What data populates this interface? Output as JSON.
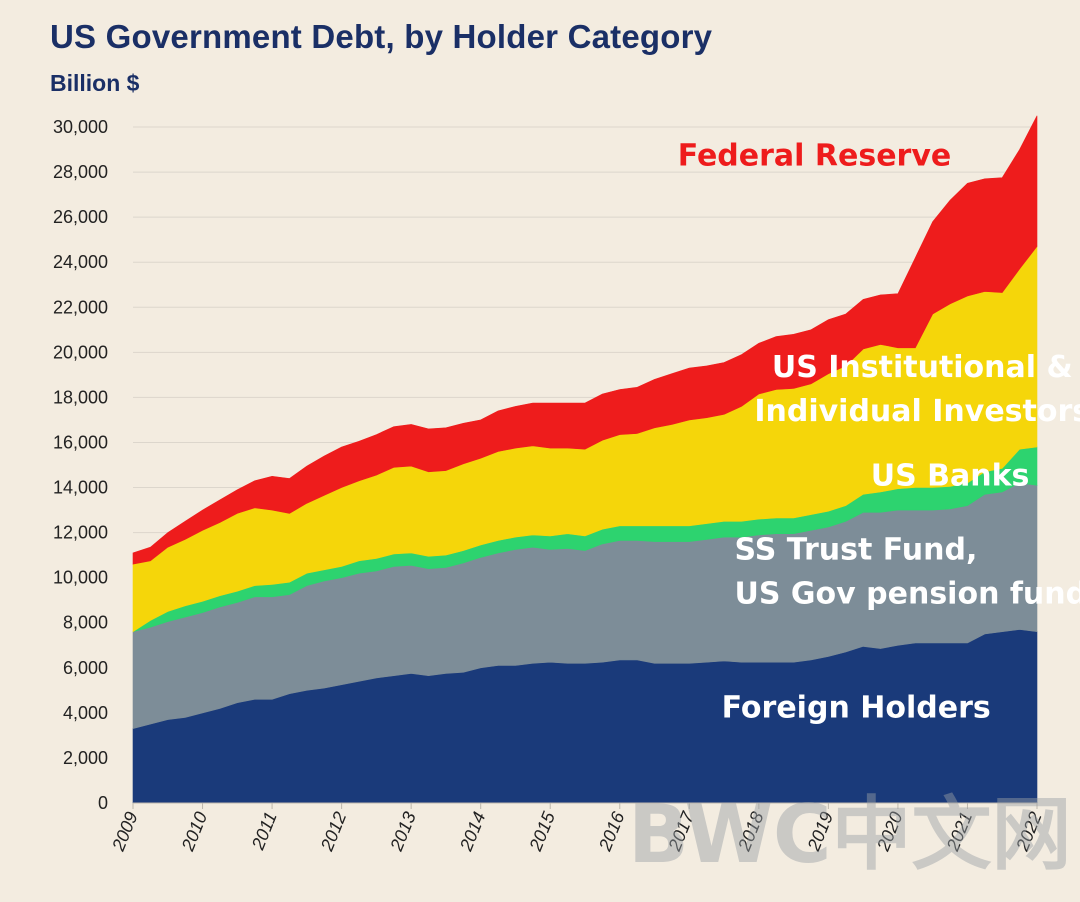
{
  "watermark": "BWC中文网",
  "chart_data": {
    "type": "area",
    "stacked": true,
    "title": "US Government Debt, by Holder Category",
    "ylabel": "Billion $",
    "xlabel": "",
    "ylim": [
      0,
      30000
    ],
    "yticks": [
      0,
      2000,
      4000,
      6000,
      8000,
      10000,
      12000,
      14000,
      16000,
      18000,
      20000,
      22000,
      24000,
      26000,
      28000,
      30000
    ],
    "ytick_labels": [
      "0",
      "2,000",
      "4,000",
      "6,000",
      "8,000",
      "10,000",
      "12,000",
      "14,000",
      "16,000",
      "18,000",
      "20,000",
      "22,000",
      "24,000",
      "26,000",
      "28,000",
      "30,000"
    ],
    "xticks": [
      "2009",
      "2010",
      "2011",
      "2012",
      "2013",
      "2014",
      "2015",
      "2016",
      "2017",
      "2018",
      "2019",
      "2020",
      "2021",
      "2022"
    ],
    "grid": true,
    "legend": "none (direct labels on areas)",
    "x": [
      2009.0,
      2009.25,
      2009.5,
      2009.75,
      2010.0,
      2010.25,
      2010.5,
      2010.75,
      2011.0,
      2011.25,
      2011.5,
      2011.75,
      2012.0,
      2012.25,
      2012.5,
      2012.75,
      2013.0,
      2013.25,
      2013.5,
      2013.75,
      2014.0,
      2014.25,
      2014.5,
      2014.75,
      2015.0,
      2015.25,
      2015.5,
      2015.75,
      2016.0,
      2016.25,
      2016.5,
      2016.75,
      2017.0,
      2017.25,
      2017.5,
      2017.75,
      2018.0,
      2018.25,
      2018.5,
      2018.75,
      2019.0,
      2019.25,
      2019.5,
      2019.75,
      2020.0,
      2020.25,
      2020.5,
      2020.75,
      2021.0,
      2021.25,
      2021.5,
      2021.75,
      2022.0
    ],
    "series": [
      {
        "name": "Foreign Holders",
        "color": "#1a3a7a",
        "label_color": "#ffffff",
        "values": [
          3300,
          3500,
          3700,
          3800,
          4000,
          4200,
          4450,
          4600,
          4600,
          4850,
          5000,
          5100,
          5250,
          5400,
          5550,
          5650,
          5750,
          5650,
          5750,
          5800,
          6000,
          6100,
          6100,
          6200,
          6250,
          6200,
          6200,
          6250,
          6350,
          6350,
          6200,
          6200,
          6200,
          6250,
          6300,
          6250,
          6250,
          6250,
          6250,
          6350,
          6500,
          6700,
          6950,
          6850,
          7000,
          7100,
          7100,
          7100,
          7100,
          7500,
          7600,
          7700,
          7600
        ]
      },
      {
        "name": "SS Trust Fund, US Gov pension funds",
        "color": "#7d8d98",
        "label_color": "#ffffff",
        "values": [
          4300,
          4300,
          4350,
          4450,
          4450,
          4500,
          4450,
          4550,
          4550,
          4400,
          4650,
          4750,
          4750,
          4800,
          4750,
          4850,
          4800,
          4750,
          4700,
          4850,
          4900,
          5000,
          5150,
          5150,
          5000,
          5100,
          5000,
          5250,
          5300,
          5300,
          5400,
          5400,
          5400,
          5450,
          5500,
          5550,
          5650,
          5700,
          5700,
          5750,
          5750,
          5800,
          5950,
          6050,
          6000,
          5900,
          5900,
          5950,
          6100,
          6200,
          6200,
          6500,
          6500
        ]
      },
      {
        "name": "US Banks",
        "color": "#2dd36f",
        "label_color": "#ffffff",
        "values": [
          0,
          300,
          450,
          500,
          500,
          500,
          500,
          500,
          550,
          550,
          550,
          500,
          500,
          550,
          550,
          550,
          550,
          550,
          550,
          550,
          550,
          550,
          550,
          550,
          600,
          650,
          650,
          650,
          650,
          650,
          700,
          700,
          700,
          700,
          700,
          700,
          700,
          700,
          700,
          700,
          700,
          700,
          800,
          900,
          950,
          1000,
          1000,
          1000,
          1000,
          1000,
          1050,
          1500,
          1700
        ]
      },
      {
        "name": "US Institutional & Individual Investors",
        "color": "#f5d60a",
        "label_color": "#ffffff",
        "values": [
          3000,
          2650,
          2850,
          2950,
          3150,
          3250,
          3450,
          3450,
          3300,
          3050,
          3100,
          3300,
          3500,
          3550,
          3700,
          3850,
          3850,
          3750,
          3750,
          3850,
          3850,
          3950,
          3950,
          3950,
          3900,
          3800,
          3850,
          3950,
          4050,
          4100,
          4350,
          4500,
          4700,
          4700,
          4750,
          5100,
          5550,
          5700,
          5750,
          5800,
          6100,
          6200,
          6450,
          6550,
          6250,
          6200,
          7700,
          8100,
          8300,
          8000,
          7800,
          8000,
          8900
        ]
      },
      {
        "name": "Federal Reserve",
        "color": "#ee1c1c",
        "label_color": "#ee1c1c",
        "values": [
          500,
          600,
          650,
          800,
          900,
          1000,
          1050,
          1200,
          1500,
          1550,
          1650,
          1750,
          1800,
          1750,
          1800,
          1800,
          1850,
          1900,
          1900,
          1800,
          1700,
          1800,
          1850,
          1900,
          2000,
          2000,
          2050,
          2050,
          2000,
          2050,
          2150,
          2250,
          2300,
          2300,
          2300,
          2300,
          2250,
          2350,
          2400,
          2400,
          2400,
          2300,
          2200,
          2200,
          2400,
          4000,
          4100,
          4600,
          5000,
          5000,
          5100,
          5300,
          5800
        ]
      }
    ],
    "labels": [
      {
        "series_index": 4,
        "lines": [
          "Federal Reserve"
        ],
        "at": [
          2018.8,
          28300
        ],
        "anchor": "middle"
      },
      {
        "series_index": 3,
        "lines": [
          "US Institutional &",
          "Individual Investors"
        ],
        "at": [
          2020.35,
          18900
        ],
        "anchor": "middle"
      },
      {
        "series_index": 2,
        "lines": [
          "US Banks"
        ],
        "at": [
          2020.75,
          14100
        ],
        "anchor": "middle"
      },
      {
        "series_index": 1,
        "lines": [
          "SS Trust Fund,",
          "US Gov pension funds"
        ],
        "at": [
          2017.65,
          10800
        ],
        "anchor": "start"
      },
      {
        "series_index": 0,
        "lines": [
          "Foreign Holders"
        ],
        "at": [
          2019.4,
          3800
        ],
        "anchor": "middle"
      }
    ]
  }
}
